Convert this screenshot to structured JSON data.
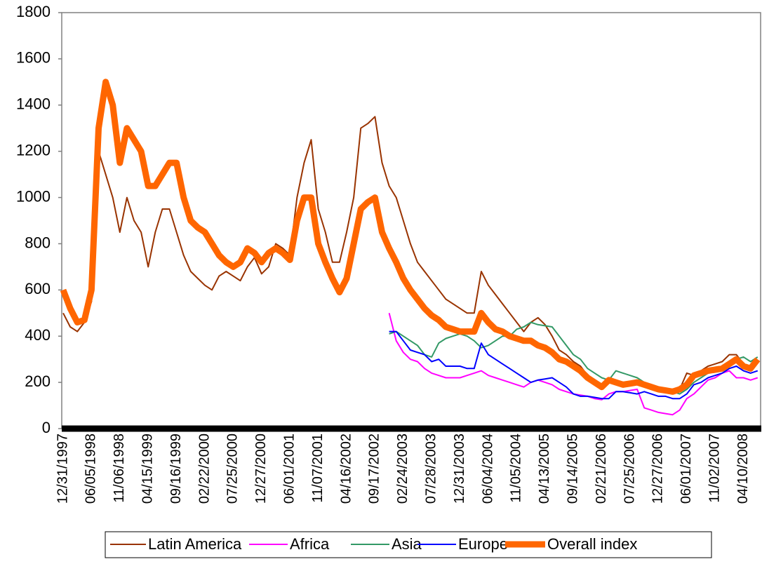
{
  "chart_data": {
    "type": "line",
    "categories": [
      "12/31/1997",
      null,
      null,
      null,
      "06/05/1998",
      null,
      null,
      null,
      "11/06/1998",
      null,
      null,
      null,
      "04/15/1999",
      null,
      null,
      null,
      "09/16/1999",
      null,
      null,
      null,
      "02/22/2000",
      null,
      null,
      null,
      "07/25/2000",
      null,
      null,
      null,
      "12/27/2000",
      null,
      null,
      null,
      "06/01/2001",
      null,
      null,
      null,
      "11/07/2001",
      null,
      null,
      null,
      "04/16/2002",
      null,
      null,
      null,
      "09/17/2002",
      null,
      null,
      null,
      "02/24/2003",
      null,
      null,
      null,
      "07/28/2003",
      null,
      null,
      null,
      "12/31/2003",
      null,
      null,
      null,
      "06/04/2004",
      null,
      null,
      null,
      "11/05/2004",
      null,
      null,
      null,
      "04/13/2005",
      null,
      null,
      null,
      "09/14/2005",
      null,
      null,
      null,
      "02/21/2006",
      null,
      null,
      null,
      "07/25/2006",
      null,
      null,
      null,
      "12/27/2006",
      null,
      null,
      null,
      "06/01/2007",
      null,
      null,
      null,
      "11/02/2007",
      null,
      null,
      null,
      "04/10/2008",
      null,
      null
    ],
    "series": [
      {
        "name": "Latin America",
        "color": "#993300",
        "width": 2,
        "values": [
          500,
          440,
          420,
          460,
          550,
          1200,
          1100,
          1000,
          850,
          1000,
          900,
          850,
          700,
          850,
          950,
          950,
          850,
          750,
          680,
          650,
          620,
          600,
          660,
          680,
          660,
          640,
          700,
          740,
          670,
          700,
          800,
          780,
          750,
          1000,
          1150,
          1250,
          950,
          850,
          720,
          720,
          850,
          1000,
          1300,
          1320,
          1350,
          1150,
          1050,
          1000,
          900,
          800,
          720,
          680,
          640,
          600,
          560,
          540,
          520,
          500,
          500,
          680,
          620,
          580,
          540,
          500,
          460,
          420,
          460,
          480,
          450,
          400,
          340,
          320,
          290,
          270,
          230,
          210,
          190,
          220,
          210,
          200,
          200,
          200,
          185,
          170,
          160,
          160,
          150,
          170,
          240,
          230,
          250,
          270,
          280,
          290,
          320,
          320,
          280,
          270,
          290
        ]
      },
      {
        "name": "Africa",
        "color": "#ff00ff",
        "width": 2,
        "values": [
          null,
          null,
          null,
          null,
          null,
          null,
          null,
          null,
          null,
          null,
          null,
          null,
          null,
          null,
          null,
          null,
          null,
          null,
          null,
          null,
          null,
          null,
          null,
          null,
          null,
          null,
          null,
          null,
          null,
          null,
          null,
          null,
          null,
          null,
          null,
          null,
          null,
          null,
          null,
          null,
          null,
          null,
          null,
          null,
          null,
          null,
          500,
          380,
          330,
          300,
          290,
          260,
          240,
          230,
          220,
          220,
          220,
          230,
          240,
          250,
          230,
          220,
          210,
          200,
          190,
          180,
          200,
          210,
          200,
          190,
          170,
          160,
          150,
          145,
          140,
          130,
          125,
          150,
          160,
          160,
          165,
          170,
          90,
          80,
          70,
          65,
          60,
          80,
          130,
          150,
          180,
          210,
          220,
          240,
          250,
          220,
          220,
          210,
          220
        ]
      },
      {
        "name": "Asia",
        "color": "#339966",
        "width": 2,
        "values": [
          null,
          null,
          null,
          null,
          null,
          null,
          null,
          null,
          null,
          null,
          null,
          null,
          null,
          null,
          null,
          null,
          null,
          null,
          null,
          null,
          null,
          null,
          null,
          null,
          null,
          null,
          null,
          null,
          null,
          null,
          null,
          null,
          null,
          null,
          null,
          null,
          null,
          null,
          null,
          null,
          null,
          null,
          null,
          null,
          null,
          null,
          410,
          420,
          400,
          380,
          360,
          320,
          310,
          370,
          390,
          400,
          410,
          400,
          380,
          350,
          360,
          380,
          400,
          400,
          430,
          440,
          460,
          450,
          445,
          440,
          400,
          360,
          320,
          300,
          260,
          240,
          220,
          210,
          250,
          240,
          230,
          220,
          200,
          190,
          180,
          170,
          160,
          150,
          170,
          200,
          220,
          240,
          250,
          260,
          280,
          300,
          310,
          290,
          310
        ]
      },
      {
        "name": "Europe",
        "color": "#0000ff",
        "width": 2,
        "values": [
          null,
          null,
          null,
          null,
          null,
          null,
          null,
          null,
          null,
          null,
          null,
          null,
          null,
          null,
          null,
          null,
          null,
          null,
          null,
          null,
          null,
          null,
          null,
          null,
          null,
          null,
          null,
          null,
          null,
          null,
          null,
          null,
          null,
          null,
          null,
          null,
          null,
          null,
          null,
          null,
          null,
          null,
          null,
          null,
          null,
          null,
          420,
          420,
          380,
          340,
          330,
          320,
          290,
          300,
          270,
          270,
          270,
          260,
          260,
          370,
          320,
          300,
          280,
          260,
          240,
          220,
          200,
          210,
          215,
          220,
          200,
          180,
          150,
          140,
          140,
          135,
          130,
          130,
          160,
          160,
          155,
          150,
          160,
          150,
          140,
          140,
          130,
          130,
          150,
          190,
          200,
          220,
          230,
          240,
          260,
          270,
          250,
          240,
          250
        ]
      },
      {
        "name": "Overall index",
        "color": "#ff6600",
        "width": 9,
        "values": [
          600,
          520,
          460,
          470,
          600,
          1300,
          1500,
          1400,
          1150,
          1300,
          1250,
          1200,
          1050,
          1050,
          1100,
          1150,
          1150,
          1000,
          900,
          870,
          850,
          800,
          750,
          720,
          700,
          720,
          780,
          760,
          720,
          760,
          780,
          760,
          730,
          900,
          1000,
          1000,
          800,
          720,
          650,
          590,
          650,
          800,
          950,
          980,
          1000,
          850,
          780,
          720,
          650,
          600,
          560,
          520,
          490,
          470,
          440,
          430,
          420,
          420,
          420,
          500,
          460,
          430,
          420,
          400,
          390,
          380,
          380,
          360,
          350,
          330,
          300,
          290,
          270,
          250,
          220,
          200,
          180,
          210,
          200,
          190,
          195,
          200,
          190,
          180,
          170,
          165,
          160,
          170,
          190,
          230,
          240,
          250,
          255,
          260,
          280,
          300,
          270,
          260,
          300
        ]
      }
    ],
    "ylim": [
      0,
      1800
    ],
    "yticks": [
      0,
      200,
      400,
      600,
      800,
      1000,
      1200,
      1400,
      1600,
      1800
    ],
    "grid": false,
    "legend": "bottom"
  }
}
